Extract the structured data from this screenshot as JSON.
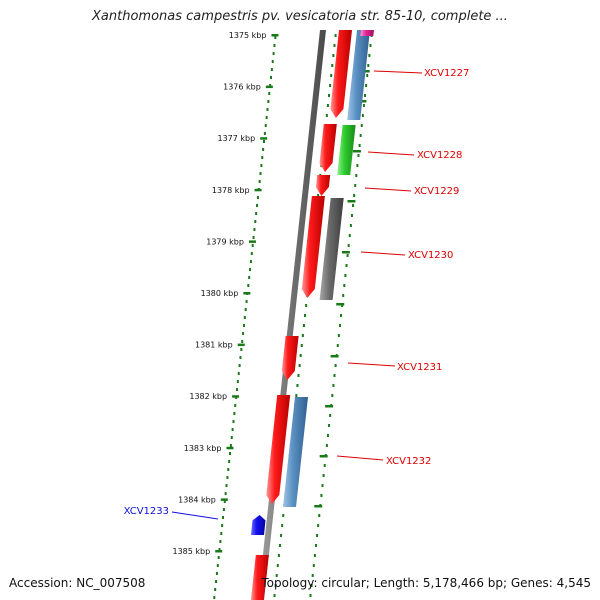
{
  "title": "Xanthomonas campestris pv. vesicatoria str. 85-10, complete ...",
  "footer": {
    "accession": "Accession: NC_007508",
    "summary": "Topology: circular; Length: 5,178,466 bp; Genes: 4,545"
  },
  "ruler": {
    "unit": "kbp",
    "ticks": [
      "1375 kbp",
      "1376 kbp",
      "1377 kbp",
      "1378 kbp",
      "1379 kbp",
      "1380 kbp",
      "1381 kbp",
      "1382 kbp",
      "1383 kbp",
      "1384 kbp",
      "1385 kbp"
    ]
  },
  "colors": {
    "red": "#ff0000",
    "blue": "#4f86b8",
    "green": "#2ecc2e",
    "gray": "#6b6b6b",
    "magenta": "#e6249a",
    "darkblue": "#1010ee",
    "ruler": "#1a7a1a",
    "label_red": "#dd0000",
    "label_blue": "#1010dd"
  },
  "genes": [
    {
      "label": "XCV1227",
      "label_color": "label_red"
    },
    {
      "label": "XCV1228",
      "label_color": "label_red"
    },
    {
      "label": "XCV1229",
      "label_color": "label_red"
    },
    {
      "label": "XCV1230",
      "label_color": "label_red"
    },
    {
      "label": "XCV1231",
      "label_color": "label_red"
    },
    {
      "label": "XCV1232",
      "label_color": "label_red"
    },
    {
      "label": "XCV1233",
      "label_color": "label_blue"
    }
  ]
}
